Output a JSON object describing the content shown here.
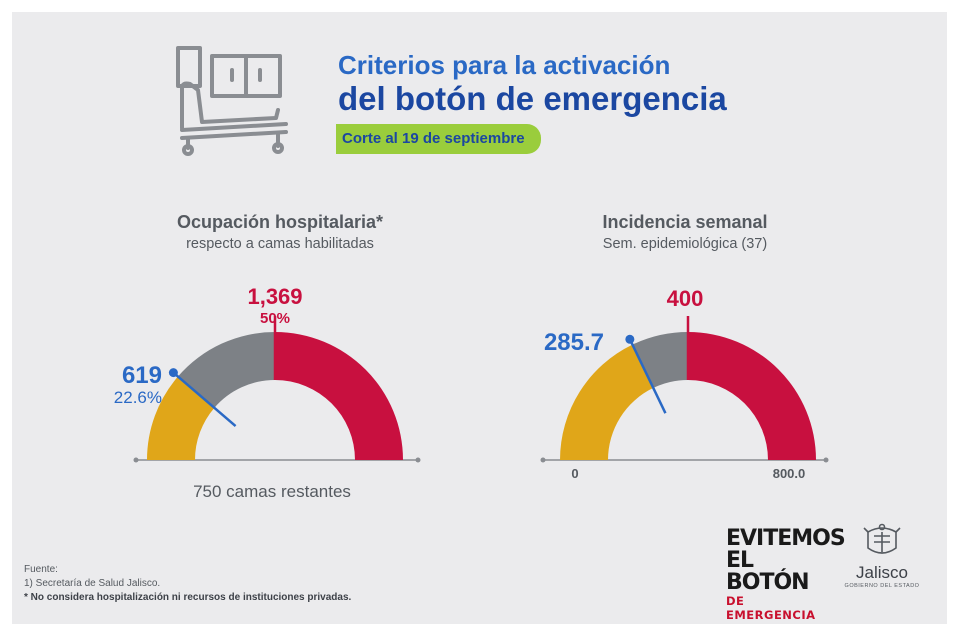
{
  "header": {
    "title_line1": "Criterios para la activación",
    "title_line2": "del botón de emergencia",
    "date_badge": "Corte al 19 de septiembre"
  },
  "chart_data": [
    {
      "type": "gauge",
      "title": "Ocupación hospitalaria*",
      "subtitle": "respecto a camas habilitadas",
      "footer": "750 camas restantes",
      "current_value": 619,
      "current_label": "619",
      "current_percent": "22.6%",
      "threshold_value": 1369,
      "threshold_label": "1,369",
      "threshold_percent": "50%",
      "max_value": 2738,
      "segments": [
        {
          "from": 0,
          "to": 619,
          "color": "#e0a619"
        },
        {
          "from": 619,
          "to": 1369,
          "color": "#7d8186"
        },
        {
          "from": 1369,
          "to": 2738,
          "color": "#c8103f"
        }
      ]
    },
    {
      "type": "gauge",
      "title": "Incidencia semanal",
      "subtitle": "Sem. epidemiológica (37)",
      "current_value": 285.7,
      "current_label": "285.7",
      "threshold_value": 400,
      "threshold_label": "400",
      "min_label": "0",
      "max_label": "800.0",
      "max_value": 800,
      "segments": [
        {
          "from": 0,
          "to": 285.7,
          "color": "#e0a619"
        },
        {
          "from": 285.7,
          "to": 400,
          "color": "#7d8186"
        },
        {
          "from": 400,
          "to": 800,
          "color": "#c8103f"
        }
      ]
    }
  ],
  "colors": {
    "current": "#2a69c5",
    "threshold": "#c8103f",
    "axis": "#8a8d92"
  },
  "sources": {
    "label": "Fuente:",
    "line1": "1) Secretaría de Salud Jalisco.",
    "line2": "* No considera hospitalización ni recursos de instituciones privadas."
  },
  "logos": {
    "evitemos_line1": "EVITEMOS",
    "evitemos_line2": "EL BOTÓN",
    "evitemos_line3": "DE EMERGENCIA",
    "jalisco_name": "Jalisco",
    "jalisco_gov": "GOBIERNO DEL ESTADO"
  }
}
